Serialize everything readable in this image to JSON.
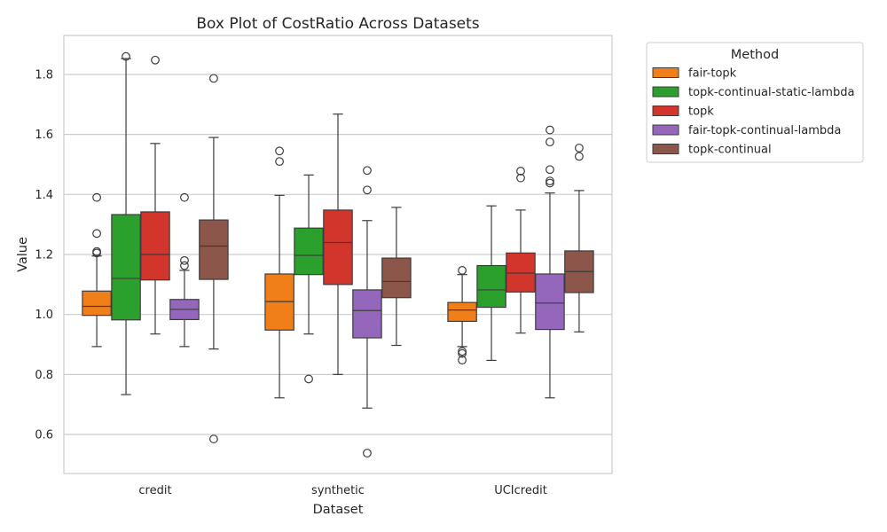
{
  "chart_data": {
    "type": "box",
    "title": "Box Plot of CostRatio Across Datasets",
    "xlabel": "Dataset",
    "ylabel": "Value",
    "ylim": [
      0.47,
      1.93
    ],
    "yticks": [
      "0.6",
      "0.8",
      "1.0",
      "1.2",
      "1.4",
      "1.6",
      "1.8"
    ],
    "grid": "horizontal",
    "legend_title": "Method",
    "legend_position": "outside-top-right",
    "categories": [
      "credit",
      "synthetic",
      "UCIcredit"
    ],
    "series": [
      {
        "name": "fair-topk",
        "color": "#f07f1a",
        "boxes": [
          {
            "whisker_low": 0.893,
            "q1": 0.997,
            "median": 1.027,
            "q3": 1.078,
            "whisker_high": 1.195,
            "outliers": [
              1.205,
              1.21,
              1.27,
              1.39
            ]
          },
          {
            "whisker_low": 0.722,
            "q1": 0.948,
            "median": 1.043,
            "q3": 1.135,
            "whisker_high": 1.397,
            "outliers": [
              1.51,
              1.545
            ]
          },
          {
            "whisker_low": 0.893,
            "q1": 0.977,
            "median": 1.015,
            "q3": 1.04,
            "whisker_high": 1.133,
            "outliers": [
              1.147,
              0.877,
              0.87,
              0.848
            ]
          }
        ]
      },
      {
        "name": "topk-continual-static-lambda",
        "color": "#2ca02c",
        "boxes": [
          {
            "whisker_low": 0.733,
            "q1": 0.982,
            "median": 1.12,
            "q3": 1.333,
            "whisker_high": 1.853,
            "outliers": [
              1.86
            ]
          },
          {
            "whisker_low": 0.935,
            "q1": 1.133,
            "median": 1.197,
            "q3": 1.288,
            "whisker_high": 1.465,
            "outliers": [
              0.785
            ]
          },
          {
            "whisker_low": 0.847,
            "q1": 1.024,
            "median": 1.082,
            "q3": 1.163,
            "whisker_high": 1.362,
            "outliers": []
          }
        ]
      },
      {
        "name": "topk",
        "color": "#d1352b",
        "boxes": [
          {
            "whisker_low": 0.935,
            "q1": 1.115,
            "median": 1.2,
            "q3": 1.342,
            "whisker_high": 1.57,
            "outliers": [
              1.848
            ]
          },
          {
            "whisker_low": 0.8,
            "q1": 1.1,
            "median": 1.24,
            "q3": 1.348,
            "whisker_high": 1.668,
            "outliers": []
          },
          {
            "whisker_low": 0.938,
            "q1": 1.075,
            "median": 1.138,
            "q3": 1.205,
            "whisker_high": 1.348,
            "outliers": [
              1.455,
              1.478
            ]
          }
        ]
      },
      {
        "name": "fair-topk-continual-lambda",
        "color": "#9467bd",
        "boxes": [
          {
            "whisker_low": 0.893,
            "q1": 0.983,
            "median": 1.017,
            "q3": 1.05,
            "whisker_high": 1.147,
            "outliers": [
              1.163,
              1.18,
              1.39
            ]
          },
          {
            "whisker_low": 0.688,
            "q1": 0.922,
            "median": 1.013,
            "q3": 1.082,
            "whisker_high": 1.313,
            "outliers": [
              1.415,
              1.48,
              0.538
            ]
          },
          {
            "whisker_low": 0.722,
            "q1": 0.95,
            "median": 1.038,
            "q3": 1.135,
            "whisker_high": 1.405,
            "outliers": [
              1.438,
              1.445,
              1.483,
              1.575,
              1.615
            ]
          }
        ]
      },
      {
        "name": "topk-continual",
        "color": "#8c564b",
        "boxes": [
          {
            "whisker_low": 0.885,
            "q1": 1.117,
            "median": 1.228,
            "q3": 1.315,
            "whisker_high": 1.59,
            "outliers": [
              1.787,
              0.585
            ]
          },
          {
            "whisker_low": 0.897,
            "q1": 1.056,
            "median": 1.11,
            "q3": 1.188,
            "whisker_high": 1.357,
            "outliers": []
          },
          {
            "whisker_low": 0.942,
            "q1": 1.073,
            "median": 1.143,
            "q3": 1.212,
            "whisker_high": 1.413,
            "outliers": [
              1.527,
              1.555
            ]
          }
        ]
      }
    ]
  }
}
